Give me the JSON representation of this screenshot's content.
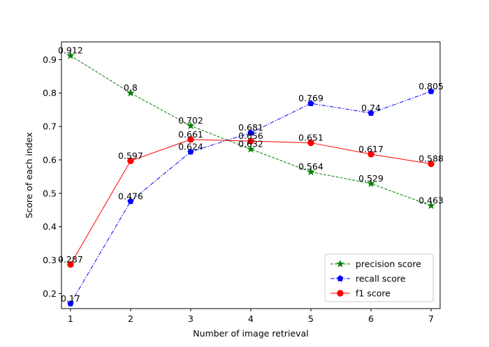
{
  "chart_data": {
    "type": "line",
    "title": "",
    "xlabel": "Number of image retrieval",
    "ylabel": "Score of each index",
    "x": [
      1,
      2,
      3,
      4,
      5,
      6,
      7
    ],
    "xlim": [
      0.85,
      7.15
    ],
    "ylim": [
      0.155,
      0.953
    ],
    "xticks": [
      1,
      2,
      3,
      4,
      5,
      6,
      7
    ],
    "yticks": [
      0.2,
      0.3,
      0.4,
      0.5,
      0.6,
      0.7,
      0.8,
      0.9
    ],
    "grid": false,
    "legend_position": "lower-right",
    "series": [
      {
        "name": "precision score",
        "values": [
          0.912,
          0.8,
          0.702,
          0.632,
          0.564,
          0.529,
          0.463
        ],
        "labels": [
          "0.912",
          "0.8",
          "0.702",
          "0.632",
          "0.564",
          "0.529",
          "0.463"
        ],
        "color": "#008000",
        "linestyle": "dashed",
        "marker": "star"
      },
      {
        "name": "recall score",
        "values": [
          0.17,
          0.476,
          0.624,
          0.681,
          0.769,
          0.74,
          0.805
        ],
        "labels": [
          "0.17",
          "0.476",
          "0.624",
          "0.681",
          "0.769",
          "0.74",
          "0.805"
        ],
        "color": "#0000ff",
        "linestyle": "dashdot",
        "marker": "pentagon"
      },
      {
        "name": "f1 score",
        "values": [
          0.287,
          0.597,
          0.661,
          0.656,
          0.651,
          0.617,
          0.588
        ],
        "labels": [
          "0.287",
          "0.597",
          "0.661",
          "0.656",
          "0.651",
          "0.617",
          "0.588"
        ],
        "color": "#ff0000",
        "linestyle": "solid",
        "marker": "circle"
      }
    ]
  }
}
